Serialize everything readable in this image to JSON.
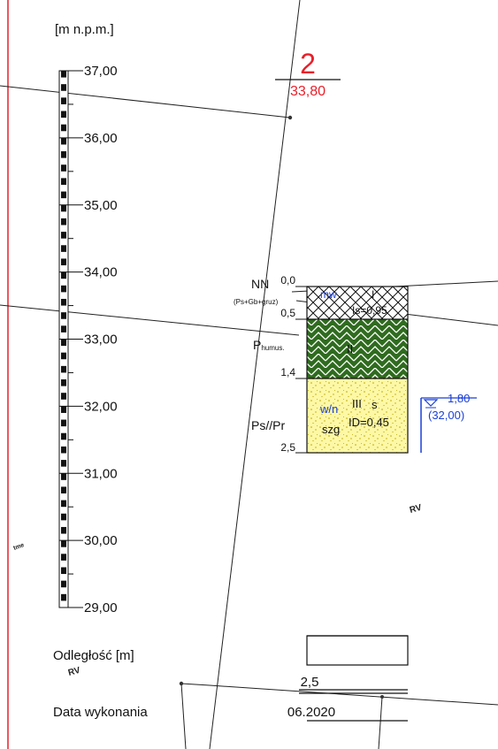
{
  "axis": {
    "unit_label": "[m n.p.m.]",
    "ticks": [
      "37,00",
      "36,00",
      "35,00",
      "34,00",
      "33,00",
      "32,00",
      "31,00",
      "30,00",
      "29,00"
    ]
  },
  "borehole": {
    "number": "2",
    "top_elevation": "33,80",
    "depths": [
      "0,0",
      "0,5",
      "1,4",
      "2,5"
    ],
    "layers": [
      {
        "name": "fill",
        "left_label": "NN",
        "left_sublabel": "(Ps+Gb+gruz)",
        "center_label": "mw",
        "roman": "I",
        "param": "Is=0,95",
        "color": "#ffffff"
      },
      {
        "name": "humus",
        "left_label": "P",
        "left_sublabel": "humus.",
        "roman": "II",
        "color": "#2f6b1f"
      },
      {
        "name": "sand",
        "left_label": "Ps//Pr",
        "moisture": "w/n",
        "roman": "III",
        "roman_suffix": "s",
        "state": "szg",
        "param": "ID=0,45",
        "color": "#fdf8a6"
      }
    ],
    "water": {
      "depth": "1,80",
      "elevation": "(32,00)",
      "color": "#1a3fd6"
    }
  },
  "map_labels": [
    "RV",
    "RV",
    "tme"
  ],
  "footer": {
    "distance_label": "Odległość [m]",
    "distance_value": "2,5",
    "date_label": "Data wykonania",
    "date_value": "06.2020"
  },
  "colors": {
    "red": "#e8202a",
    "blue": "#1a3fd6",
    "line": "#111111"
  }
}
